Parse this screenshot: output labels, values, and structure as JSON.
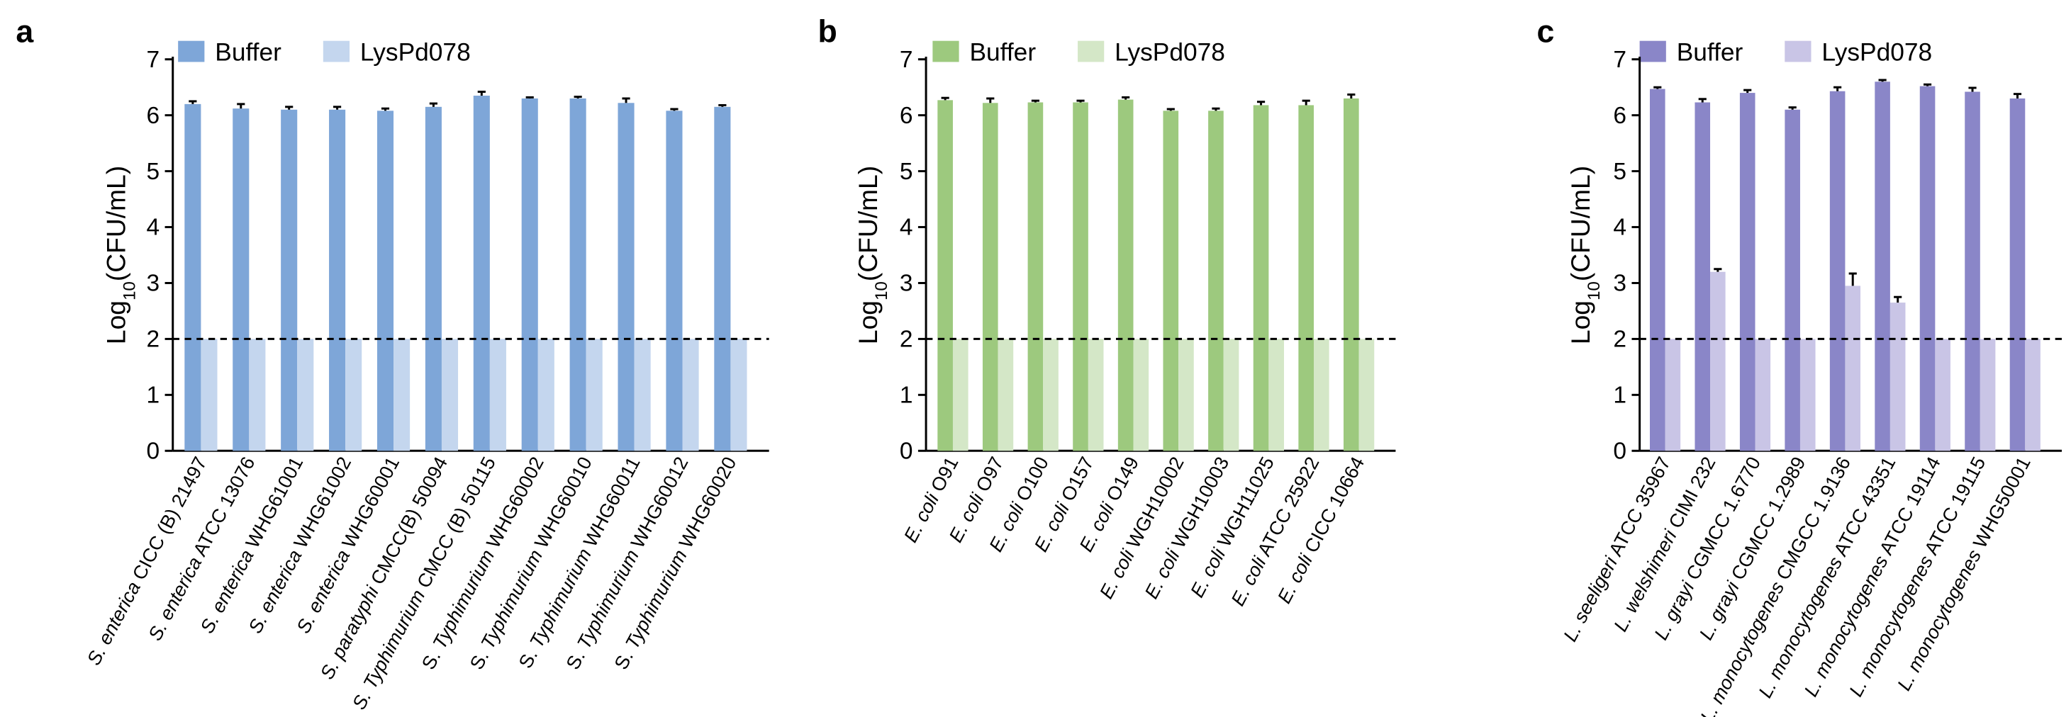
{
  "chart_data": [
    {
      "type": "bar",
      "panel": "a",
      "ylabel_main": "Log",
      "ylabel_sub": "10",
      "ylabel_tail": "(CFU/mL)",
      "ylim": [
        0,
        7
      ],
      "yticks": [
        0,
        1,
        2,
        3,
        4,
        5,
        6,
        7
      ],
      "grid": false,
      "legend_position": "top",
      "threshold": 2,
      "categories": [
        {
          "italic": "S. enterica",
          "rest": " CICC (B) 21497"
        },
        {
          "italic": "S. enterica",
          "rest": " ATCC 13076"
        },
        {
          "italic": "S. enterica",
          "rest": " WHG61001"
        },
        {
          "italic": "S. enterica",
          "rest": " WHG61002"
        },
        {
          "italic": "S. enterica",
          "rest": " WHG60001"
        },
        {
          "italic": "S. paratyphi",
          "rest": " CMCC(B) 50094"
        },
        {
          "italic": "S. Typhimurium",
          "rest": " CMCC (B) 50115",
          "prefix": ""
        },
        {
          "prefix": "S. ",
          "italic": "Typhimurium",
          "rest": " WHG60002"
        },
        {
          "prefix": "S. ",
          "italic": "Typhimurium",
          "rest": " WHG60010"
        },
        {
          "prefix": "S. ",
          "italic": "Typhimurium",
          "rest": " WHG60011"
        },
        {
          "prefix": "S. ",
          "italic": "Typhimurium",
          "rest": " WHG60012"
        },
        {
          "prefix": "S. ",
          "italic": "Typhimurium",
          "rest": " WHG60020"
        }
      ],
      "series": [
        {
          "name": "Buffer",
          "color": "#7ea6d8",
          "values": [
            6.2,
            6.12,
            6.1,
            6.1,
            6.08,
            6.15,
            6.35,
            6.3,
            6.3,
            6.22,
            6.08,
            6.15
          ],
          "errors": [
            0.05,
            0.08,
            0.05,
            0.05,
            0.04,
            0.06,
            0.07,
            0.02,
            0.03,
            0.08,
            0.03,
            0.03
          ]
        },
        {
          "name": "LysPd078",
          "color": "#c4d6ee",
          "values": [
            2,
            2,
            2,
            2,
            2,
            2,
            2,
            2,
            2,
            2,
            2,
            2
          ],
          "errors": [
            0,
            0,
            0,
            0,
            0,
            0,
            0,
            0,
            0,
            0,
            0,
            0
          ]
        }
      ]
    },
    {
      "type": "bar",
      "panel": "b",
      "ylabel_main": "Log",
      "ylabel_sub": "10",
      "ylabel_tail": "(CFU/mL)",
      "ylim": [
        0,
        7
      ],
      "yticks": [
        0,
        1,
        2,
        3,
        4,
        5,
        6,
        7
      ],
      "grid": false,
      "legend_position": "top",
      "threshold": 2,
      "categories": [
        {
          "italic": "E. coli",
          "rest": " O91"
        },
        {
          "italic": "E. coli",
          "rest": " O97"
        },
        {
          "italic": "E. coli",
          "rest": " O100"
        },
        {
          "italic": "E. coli",
          "rest": " O157"
        },
        {
          "italic": "E. coli",
          "rest": " O149"
        },
        {
          "italic": "E. coli",
          "rest": " WGH10002"
        },
        {
          "italic": "E. coli",
          "rest": " WGH10003"
        },
        {
          "italic": "E. coli",
          "rest": " WGH11025"
        },
        {
          "italic": "E. coli",
          "rest": " ATCC 25922"
        },
        {
          "italic": "E. coli",
          "rest": " CICC 10664"
        }
      ],
      "series": [
        {
          "name": "Buffer",
          "color": "#9dc97e",
          "values": [
            6.27,
            6.22,
            6.23,
            6.23,
            6.28,
            6.08,
            6.08,
            6.18,
            6.18,
            6.3
          ],
          "errors": [
            0.04,
            0.08,
            0.03,
            0.03,
            0.04,
            0.03,
            0.04,
            0.06,
            0.08,
            0.07
          ]
        },
        {
          "name": "LysPd078",
          "color": "#d4e7c7",
          "values": [
            2,
            2,
            2,
            2,
            2,
            2,
            2,
            2,
            2,
            2
          ],
          "errors": [
            0,
            0,
            0,
            0,
            0,
            0,
            0,
            0,
            0,
            0
          ]
        }
      ]
    },
    {
      "type": "bar",
      "panel": "c",
      "ylabel_main": "Log",
      "ylabel_sub": "10",
      "ylabel_tail": "(CFU/mL)",
      "ylim": [
        0,
        7
      ],
      "yticks": [
        0,
        1,
        2,
        3,
        4,
        5,
        6,
        7
      ],
      "grid": false,
      "legend_position": "top",
      "threshold": 2,
      "categories": [
        {
          "italic": "L. seeligeri",
          "rest": " ATCC 35967"
        },
        {
          "italic": "L. welshimeri",
          "rest": " CIMI 232"
        },
        {
          "italic": "L. grayi",
          "rest": " CGMCC 1.6770"
        },
        {
          "italic": "L. grayi",
          "rest": " CGMCC 1.2989"
        },
        {
          "italic": "L. monocytogenes",
          "rest": " CMGCC 1.9136"
        },
        {
          "italic": "L. monocytogenes",
          "rest": " ATCC 43351"
        },
        {
          "italic": "L. monocytogenes",
          "rest": " ATCC 19114"
        },
        {
          "italic": "L. monocytogenes",
          "rest": " ATCC 19115"
        },
        {
          "italic": "L. monocytogenes",
          "rest": " WHG50001"
        }
      ],
      "series": [
        {
          "name": "Buffer",
          "color": "#8a86c8",
          "values": [
            6.47,
            6.23,
            6.4,
            6.1,
            6.43,
            6.6,
            6.52,
            6.42,
            6.3
          ],
          "errors": [
            0.03,
            0.06,
            0.05,
            0.04,
            0.07,
            0.03,
            0.03,
            0.07,
            0.08
          ]
        },
        {
          "name": "LysPd078",
          "color": "#c9c5e6",
          "values": [
            2,
            3.2,
            2,
            2,
            2.95,
            2.65,
            2,
            2,
            2
          ],
          "errors": [
            0,
            0.05,
            0,
            0,
            0.22,
            0.1,
            0,
            0,
            0
          ]
        }
      ]
    }
  ]
}
